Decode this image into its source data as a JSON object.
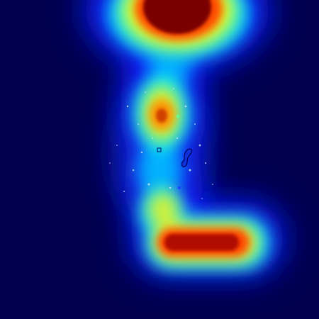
{
  "image": {
    "kind": "heatmap-overlay",
    "colormap": "jet",
    "background_color": "#00004f",
    "colormap_stops": [
      "#00004f",
      "#0000ff",
      "#00ffff",
      "#ffff00",
      "#ff0000",
      "#7f0000"
    ],
    "hotspots": [
      {
        "name": "top-hotspot",
        "intensity": 1.0
      },
      {
        "name": "middle-hotspot",
        "intensity": 0.72
      },
      {
        "name": "bottom-band-hotspot",
        "intensity": 0.85
      }
    ]
  }
}
